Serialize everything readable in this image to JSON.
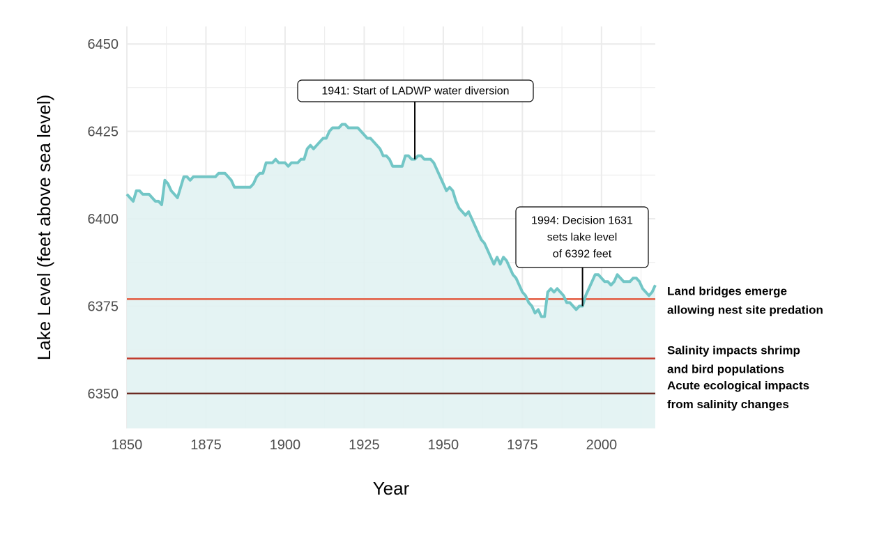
{
  "chart_data": {
    "type": "area",
    "xlabel": "Year",
    "ylabel": "Lake Level (feet above sea level)",
    "xlim": [
      1850,
      2017
    ],
    "ylim": [
      6340,
      6455
    ],
    "x_ticks": [
      1850,
      1875,
      1900,
      1925,
      1950,
      1975,
      2000
    ],
    "y_ticks": [
      6350,
      6375,
      6400,
      6425,
      6450
    ],
    "grid": true,
    "colors": {
      "line": "#72c6c6",
      "fill": "#e1f2f2",
      "grid": "#ebebeb"
    },
    "series": [
      {
        "x": [
          1850,
          1851,
          1852,
          1853,
          1854,
          1855,
          1856,
          1857,
          1858,
          1859,
          1860,
          1861,
          1862,
          1863,
          1864,
          1865,
          1866,
          1867,
          1868,
          1869,
          1870,
          1871,
          1872,
          1873,
          1874,
          1875,
          1876,
          1877,
          1878,
          1879,
          1880,
          1881,
          1882,
          1883,
          1884,
          1885,
          1886,
          1887,
          1888,
          1889,
          1890,
          1891,
          1892,
          1893,
          1894,
          1895,
          1896,
          1897,
          1898,
          1899,
          1900,
          1901,
          1902,
          1903,
          1904,
          1905,
          1906,
          1907,
          1908,
          1909,
          1910,
          1911,
          1912,
          1913,
          1914,
          1915,
          1916,
          1917,
          1918,
          1919,
          1920,
          1921,
          1922,
          1923,
          1924,
          1925,
          1926,
          1927,
          1928,
          1929,
          1930,
          1931,
          1932,
          1933,
          1934,
          1935,
          1936,
          1937,
          1938,
          1939,
          1940,
          1941,
          1942,
          1943,
          1944,
          1945,
          1946,
          1947,
          1948,
          1949,
          1950,
          1951,
          1952,
          1953,
          1954,
          1955,
          1956,
          1957,
          1958,
          1959,
          1960,
          1961,
          1962,
          1963,
          1964,
          1965,
          1966,
          1967,
          1968,
          1969,
          1970,
          1971,
          1972,
          1973,
          1974,
          1975,
          1976,
          1977,
          1978,
          1979,
          1980,
          1981,
          1982,
          1983,
          1984,
          1985,
          1986,
          1987,
          1988,
          1989,
          1990,
          1991,
          1992,
          1993,
          1994,
          1995,
          1996,
          1997,
          1998,
          1999,
          2000,
          2001,
          2002,
          2003,
          2004,
          2005,
          2006,
          2007,
          2008,
          2009,
          2010,
          2011,
          2012,
          2013,
          2014,
          2015,
          2016,
          2017
        ],
        "values": [
          6407,
          6406,
          6405,
          6408,
          6408,
          6407,
          6407,
          6407,
          6406,
          6405,
          6405,
          6404,
          6411,
          6410,
          6408,
          6407,
          6406,
          6409,
          6412,
          6412,
          6411,
          6412,
          6412,
          6412,
          6412,
          6412,
          6412,
          6412,
          6412,
          6413,
          6413,
          6413,
          6412,
          6411,
          6409,
          6409,
          6409,
          6409,
          6409,
          6409,
          6410,
          6412,
          6413,
          6413,
          6416,
          6416,
          6416,
          6417,
          6416,
          6416,
          6416,
          6415,
          6416,
          6416,
          6416,
          6417,
          6417,
          6420,
          6421,
          6420,
          6421,
          6422,
          6423,
          6423,
          6425,
          6426,
          6426,
          6426,
          6427,
          6427,
          6426,
          6426,
          6426,
          6426,
          6425,
          6424,
          6423,
          6423,
          6422,
          6421,
          6420,
          6418,
          6418,
          6417,
          6415,
          6415,
          6415,
          6415,
          6418,
          6418,
          6417,
          6417,
          6418,
          6418,
          6417,
          6417,
          6417,
          6416,
          6414,
          6412,
          6410,
          6408,
          6409,
          6408,
          6405,
          6403,
          6402,
          6401,
          6402,
          6400,
          6398,
          6396,
          6394,
          6393,
          6391,
          6389,
          6387,
          6389,
          6387,
          6389,
          6388,
          6386,
          6384,
          6383,
          6381,
          6379,
          6378,
          6376,
          6375,
          6373,
          6374,
          6372,
          6372,
          6379,
          6380,
          6379,
          6380,
          6379,
          6378,
          6376,
          6376,
          6375,
          6374,
          6375,
          6375,
          6378,
          6380,
          6382,
          6384,
          6384,
          6383,
          6382,
          6382,
          6381,
          6382,
          6384,
          6383,
          6382,
          6382,
          6382,
          6383,
          6383,
          6382,
          6380,
          6379,
          6378,
          6379,
          6381
        ]
      }
    ],
    "thresholds": [
      {
        "y": 6377,
        "color": "#e35a3f",
        "label_line1": "Land bridges emerge",
        "label_line2": "allowing nest site predation"
      },
      {
        "y": 6360,
        "color": "#c0392b",
        "label_line1": "Salinity impacts shrimp",
        "label_line2": "and bird populations"
      },
      {
        "y": 6350,
        "color": "#6b2a22",
        "label_line1": "Acute ecological impacts",
        "label_line2": "from salinity changes"
      }
    ],
    "annotations": [
      {
        "x": 1941,
        "y": 6417,
        "lines": [
          "1941: Start of LADWP water diversion"
        ]
      },
      {
        "x": 1994,
        "y": 6375,
        "lines": [
          "1994: Decision 1631",
          "sets lake level",
          "of 6392 feet"
        ]
      }
    ]
  }
}
